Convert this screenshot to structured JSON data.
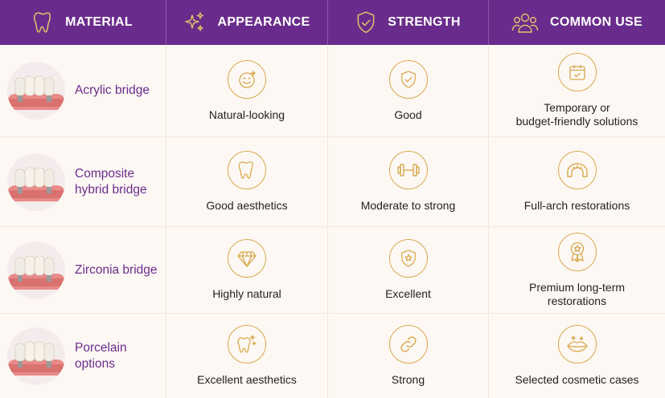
{
  "colors": {
    "header_bg": "#6a2c8c",
    "accent_gold": "#d8a94e",
    "row_bg": "#fdf8f4",
    "name_purple": "#6a2c8c"
  },
  "headers": [
    {
      "label": "MATERIAL",
      "icon": "tooth-icon"
    },
    {
      "label": "APPEARANCE",
      "icon": "sparkles-icon"
    },
    {
      "label": "STRENGTH",
      "icon": "shield-check-icon"
    },
    {
      "label": "COMMON USE",
      "icon": "people-group-icon"
    }
  ],
  "rows": [
    {
      "material": "Acrylic bridge",
      "appearance": {
        "text": "Natural-looking",
        "icon": "smiley-face-icon"
      },
      "strength": {
        "text": "Good",
        "icon": "shield-check-icon"
      },
      "use": {
        "text": "Temporary or\nbudget-friendly solutions",
        "icon": "calendar-check-icon"
      }
    },
    {
      "material": "Composite\nhybrid bridge",
      "appearance": {
        "text": "Good aesthetics",
        "icon": "tooth-icon"
      },
      "strength": {
        "text": "Moderate to strong",
        "icon": "dumbbell-icon"
      },
      "use": {
        "text": "Full-arch restorations",
        "icon": "dental-arch-icon"
      }
    },
    {
      "material": "Zirconia bridge",
      "appearance": {
        "text": "Highly natural",
        "icon": "diamond-icon"
      },
      "strength": {
        "text": "Excellent",
        "icon": "shield-star-icon"
      },
      "use": {
        "text": "Premium long-term\nrestorations",
        "icon": "award-ribbon-icon"
      }
    },
    {
      "material": "Porcelain\noptions",
      "appearance": {
        "text": "Excellent aesthetics",
        "icon": "sparkle-tooth-icon"
      },
      "strength": {
        "text": "Strong",
        "icon": "chain-link-icon"
      },
      "use": {
        "text": "Selected cosmetic cases",
        "icon": "lips-sparkle-icon"
      }
    }
  ]
}
